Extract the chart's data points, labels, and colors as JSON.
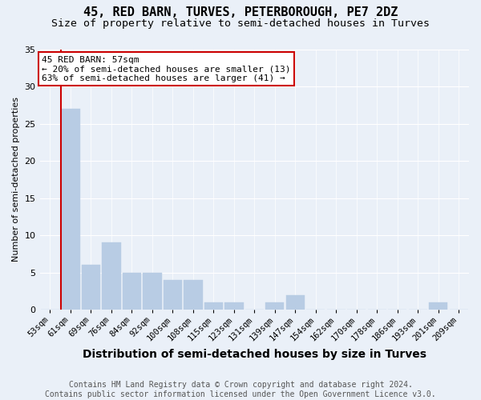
{
  "title": "45, RED BARN, TURVES, PETERBOROUGH, PE7 2DZ",
  "subtitle": "Size of property relative to semi-detached houses in Turves",
  "xlabel": "Distribution of semi-detached houses by size in Turves",
  "ylabel": "Number of semi-detached properties",
  "categories": [
    "53sqm",
    "61sqm",
    "69sqm",
    "76sqm",
    "84sqm",
    "92sqm",
    "100sqm",
    "108sqm",
    "115sqm",
    "123sqm",
    "131sqm",
    "139sqm",
    "147sqm",
    "154sqm",
    "162sqm",
    "170sqm",
    "178sqm",
    "186sqm",
    "193sqm",
    "201sqm",
    "209sqm"
  ],
  "values": [
    0,
    27,
    6,
    9,
    5,
    5,
    4,
    4,
    1,
    1,
    0,
    1,
    2,
    0,
    0,
    0,
    0,
    0,
    0,
    1,
    0
  ],
  "bar_color": "#b8cce4",
  "bar_edge_color": "#b8cce4",
  "red_line_x": 0.575,
  "red_line_color": "#cc0000",
  "ylim": [
    0,
    35
  ],
  "yticks": [
    0,
    5,
    10,
    15,
    20,
    25,
    30,
    35
  ],
  "annotation_title": "45 RED BARN: 57sqm",
  "annotation_line1": "← 20% of semi-detached houses are smaller (13)",
  "annotation_line2": "63% of semi-detached houses are larger (41) →",
  "annotation_box_color": "#ffffff",
  "annotation_box_edge_color": "#cc0000",
  "footer_line1": "Contains HM Land Registry data © Crown copyright and database right 2024.",
  "footer_line2": "Contains public sector information licensed under the Open Government Licence v3.0.",
  "background_color": "#eaf0f8",
  "grid_color": "#ffffff",
  "title_fontsize": 11,
  "subtitle_fontsize": 9.5,
  "xlabel_fontsize": 10,
  "ylabel_fontsize": 8,
  "tick_fontsize": 7.5,
  "footer_fontsize": 7
}
